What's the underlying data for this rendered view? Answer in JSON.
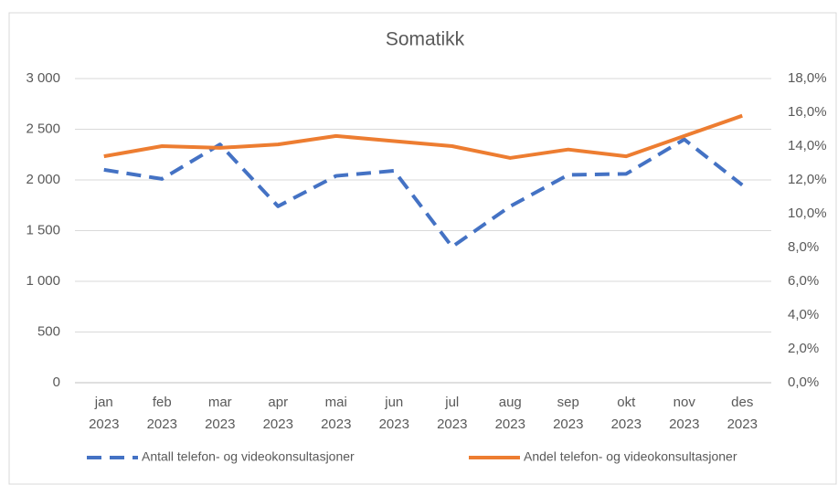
{
  "chart_data": {
    "type": "line",
    "title": "Somatikk",
    "categories": [
      "jan 2023",
      "feb 2023",
      "mar 2023",
      "apr 2023",
      "mai 2023",
      "jun 2023",
      "jul 2023",
      "aug 2023",
      "sep 2023",
      "okt 2023",
      "nov 2023",
      "des 2023"
    ],
    "series": [
      {
        "name": "Antall telefon- og videokonsultasjoner",
        "color": "#4472c4",
        "dashed": true,
        "values": [
          2100,
          2010,
          2350,
          1740,
          2040,
          2090,
          1340,
          1740,
          2050,
          2060,
          2400,
          1950
        ]
      },
      {
        "name": "Andel telefon- og videokonsultasjoner",
        "color": "#ed7d31",
        "axis": "y2",
        "values": [
          13.4,
          14.0,
          13.9,
          14.1,
          14.6,
          14.3,
          14.0,
          13.3,
          13.8,
          13.4,
          14.6,
          15.8
        ]
      }
    ],
    "ylim": [
      0,
      3000
    ],
    "yticks": [
      0,
      500,
      {
        "value": 1000,
        "label": "1 000"
      },
      {
        "value": 1500,
        "label": "1 500"
      },
      {
        "value": 2000,
        "label": "2 000"
      },
      {
        "value": 2500,
        "label": "2 500"
      },
      {
        "value": 3000,
        "label": "3 000"
      }
    ],
    "y2lim": [
      0,
      18
    ],
    "y2ticks": [
      {
        "value": 0,
        "label": "0,0%"
      },
      {
        "value": 2,
        "label": "2,0%"
      },
      {
        "value": 4,
        "label": "4,0%"
      },
      {
        "value": 6,
        "label": "6,0%"
      },
      {
        "value": 8,
        "label": "8,0%"
      },
      {
        "value": 10,
        "label": "10,0%"
      },
      {
        "value": 12,
        "label": "12,0%"
      },
      {
        "value": 14,
        "label": "14,0%"
      },
      {
        "value": 16,
        "label": "16,0%"
      },
      {
        "value": 18,
        "label": "18,0%"
      }
    ],
    "grid": true,
    "legend": "bottom"
  }
}
